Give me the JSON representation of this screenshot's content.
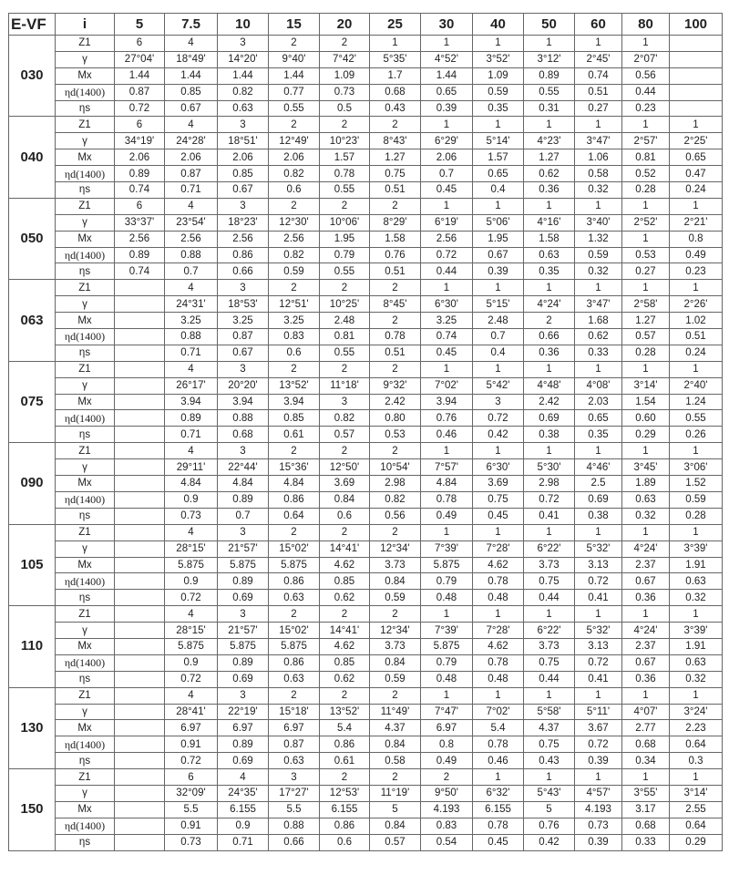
{
  "header": {
    "model": "E-VF",
    "ratio_label": "i",
    "ratios": [
      "5",
      "7.5",
      "10",
      "15",
      "20",
      "25",
      "30",
      "40",
      "50",
      "60",
      "80",
      "100"
    ]
  },
  "row_labels": [
    "Z1",
    "γ",
    "Mx",
    "ηd(1400)",
    "ηs"
  ],
  "groups": [
    {
      "size": "030",
      "rows": [
        [
          "6",
          "4",
          "3",
          "2",
          "2",
          "1",
          "1",
          "1",
          "1",
          "1",
          "1",
          ""
        ],
        [
          "27°04'",
          "18°49'",
          "14°20'",
          "9°40'",
          "7°42'",
          "5°35'",
          "4°52'",
          "3°52'",
          "3°12'",
          "2°45'",
          "2°07'",
          ""
        ],
        [
          "1.44",
          "1.44",
          "1.44",
          "1.44",
          "1.09",
          "1.7",
          "1.44",
          "1.09",
          "0.89",
          "0.74",
          "0.56",
          ""
        ],
        [
          "0.87",
          "0.85",
          "0.82",
          "0.77",
          "0.73",
          "0.68",
          "0.65",
          "0.59",
          "0.55",
          "0.51",
          "0.44",
          ""
        ],
        [
          "0.72",
          "0.67",
          "0.63",
          "0.55",
          "0.5",
          "0.43",
          "0.39",
          "0.35",
          "0.31",
          "0.27",
          "0.23",
          ""
        ]
      ]
    },
    {
      "size": "040",
      "rows": [
        [
          "6",
          "4",
          "3",
          "2",
          "2",
          "2",
          "1",
          "1",
          "1",
          "1",
          "1",
          "1"
        ],
        [
          "34°19'",
          "24°28'",
          "18°51'",
          "12°49'",
          "10°23'",
          "8°43'",
          "6°29'",
          "5°14'",
          "4°23'",
          "3°47'",
          "2°57'",
          "2°25'"
        ],
        [
          "2.06",
          "2.06",
          "2.06",
          "2.06",
          "1.57",
          "1.27",
          "2.06",
          "1.57",
          "1.27",
          "1.06",
          "0.81",
          "0.65"
        ],
        [
          "0.89",
          "0.87",
          "0.85",
          "0.82",
          "0.78",
          "0.75",
          "0.7",
          "0.65",
          "0.62",
          "0.58",
          "0.52",
          "0.47"
        ],
        [
          "0.74",
          "0.71",
          "0.67",
          "0.6",
          "0.55",
          "0.51",
          "0.45",
          "0.4",
          "0.36",
          "0.32",
          "0.28",
          "0.24"
        ]
      ]
    },
    {
      "size": "050",
      "rows": [
        [
          "6",
          "4",
          "3",
          "2",
          "2",
          "2",
          "1",
          "1",
          "1",
          "1",
          "1",
          "1"
        ],
        [
          "33°37'",
          "23°54'",
          "18°23'",
          "12°30'",
          "10°06'",
          "8°29'",
          "6°19'",
          "5°06'",
          "4°16'",
          "3°40'",
          "2°52'",
          "2°21'"
        ],
        [
          "2.56",
          "2.56",
          "2.56",
          "2.56",
          "1.95",
          "1.58",
          "2.56",
          "1.95",
          "1.58",
          "1.32",
          "1",
          "0.8"
        ],
        [
          "0.89",
          "0.88",
          "0.86",
          "0.82",
          "0.79",
          "0.76",
          "0.72",
          "0.67",
          "0.63",
          "0.59",
          "0.53",
          "0.49"
        ],
        [
          "0.74",
          "0.7",
          "0.66",
          "0.59",
          "0.55",
          "0.51",
          "0.44",
          "0.39",
          "0.35",
          "0.32",
          "0.27",
          "0.23"
        ]
      ]
    },
    {
      "size": "063",
      "rows": [
        [
          "",
          "4",
          "3",
          "2",
          "2",
          "2",
          "1",
          "1",
          "1",
          "1",
          "1",
          "1"
        ],
        [
          "",
          "24°31'",
          "18°53'",
          "12°51'",
          "10°25'",
          "8°45'",
          "6°30'",
          "5°15'",
          "4°24'",
          "3°47'",
          "2°58'",
          "2°26'"
        ],
        [
          "",
          "3.25",
          "3.25",
          "3.25",
          "2.48",
          "2",
          "3.25",
          "2.48",
          "2",
          "1.68",
          "1.27",
          "1.02"
        ],
        [
          "",
          "0.88",
          "0.87",
          "0.83",
          "0.81",
          "0.78",
          "0.74",
          "0.7",
          "0.66",
          "0.62",
          "0.57",
          "0.51"
        ],
        [
          "",
          "0.71",
          "0.67",
          "0.6",
          "0.55",
          "0.51",
          "0.45",
          "0.4",
          "0.36",
          "0.33",
          "0.28",
          "0.24"
        ]
      ]
    },
    {
      "size": "075",
      "rows": [
        [
          "",
          "4",
          "3",
          "2",
          "2",
          "2",
          "1",
          "1",
          "1",
          "1",
          "1",
          "1"
        ],
        [
          "",
          "26°17'",
          "20°20'",
          "13°52'",
          "11°18'",
          "9°32'",
          "7°02'",
          "5°42'",
          "4°48'",
          "4°08'",
          "3°14'",
          "2°40'"
        ],
        [
          "",
          "3.94",
          "3.94",
          "3.94",
          "3",
          "2.42",
          "3.94",
          "3",
          "2.42",
          "2.03",
          "1.54",
          "1.24"
        ],
        [
          "",
          "0.89",
          "0.88",
          "0.85",
          "0.82",
          "0.80",
          "0.76",
          "0.72",
          "0.69",
          "0.65",
          "0.60",
          "0.55"
        ],
        [
          "",
          "0.71",
          "0.68",
          "0.61",
          "0.57",
          "0.53",
          "0.46",
          "0.42",
          "0.38",
          "0.35",
          "0.29",
          "0.26"
        ]
      ]
    },
    {
      "size": "090",
      "rows": [
        [
          "",
          "4",
          "3",
          "2",
          "2",
          "2",
          "1",
          "1",
          "1",
          "1",
          "1",
          "1"
        ],
        [
          "",
          "29°11'",
          "22°44'",
          "15°36'",
          "12°50'",
          "10°54'",
          "7°57'",
          "6°30'",
          "5°30'",
          "4°46'",
          "3°45'",
          "3°06'"
        ],
        [
          "",
          "4.84",
          "4.84",
          "4.84",
          "3.69",
          "2.98",
          "4.84",
          "3.69",
          "2.98",
          "2.5",
          "1.89",
          "1.52"
        ],
        [
          "",
          "0.9",
          "0.89",
          "0.86",
          "0.84",
          "0.82",
          "0.78",
          "0.75",
          "0.72",
          "0.69",
          "0.63",
          "0.59"
        ],
        [
          "",
          "0.73",
          "0.7",
          "0.64",
          "0.6",
          "0.56",
          "0.49",
          "0.45",
          "0.41",
          "0.38",
          "0.32",
          "0.28"
        ]
      ]
    },
    {
      "size": "105",
      "rows": [
        [
          "",
          "4",
          "3",
          "2",
          "2",
          "2",
          "1",
          "1",
          "1",
          "1",
          "1",
          "1"
        ],
        [
          "",
          "28°15'",
          "21°57'",
          "15°02'",
          "14°41'",
          "12°34'",
          "7°39'",
          "7°28'",
          "6°22'",
          "5°32'",
          "4°24'",
          "3°39'"
        ],
        [
          "",
          "5.875",
          "5.875",
          "5.875",
          "4.62",
          "3.73",
          "5.875",
          "4.62",
          "3.73",
          "3.13",
          "2.37",
          "1.91"
        ],
        [
          "",
          "0.9",
          "0.89",
          "0.86",
          "0.85",
          "0.84",
          "0.79",
          "0.78",
          "0.75",
          "0.72",
          "0.67",
          "0.63"
        ],
        [
          "",
          "0.72",
          "0.69",
          "0.63",
          "0.62",
          "0.59",
          "0.48",
          "0.48",
          "0.44",
          "0.41",
          "0.36",
          "0.32"
        ]
      ]
    },
    {
      "size": "110",
      "rows": [
        [
          "",
          "4",
          "3",
          "2",
          "2",
          "2",
          "1",
          "1",
          "1",
          "1",
          "1",
          "1"
        ],
        [
          "",
          "28°15'",
          "21°57'",
          "15°02'",
          "14°41'",
          "12°34'",
          "7°39'",
          "7°28'",
          "6°22'",
          "5°32'",
          "4°24'",
          "3°39'"
        ],
        [
          "",
          "5.875",
          "5.875",
          "5.875",
          "4.62",
          "3.73",
          "5.875",
          "4.62",
          "3.73",
          "3.13",
          "2.37",
          "1.91"
        ],
        [
          "",
          "0.9",
          "0.89",
          "0.86",
          "0.85",
          "0.84",
          "0.79",
          "0.78",
          "0.75",
          "0.72",
          "0.67",
          "0.63"
        ],
        [
          "",
          "0.72",
          "0.69",
          "0.63",
          "0.62",
          "0.59",
          "0.48",
          "0.48",
          "0.44",
          "0.41",
          "0.36",
          "0.32"
        ]
      ]
    },
    {
      "size": "130",
      "rows": [
        [
          "",
          "4",
          "3",
          "2",
          "2",
          "2",
          "1",
          "1",
          "1",
          "1",
          "1",
          "1"
        ],
        [
          "",
          "28°41'",
          "22°19'",
          "15°18'",
          "13°52'",
          "11°49'",
          "7°47'",
          "7°02'",
          "5°58'",
          "5°11'",
          "4°07'",
          "3°24'"
        ],
        [
          "",
          "6.97",
          "6.97",
          "6.97",
          "5.4",
          "4.37",
          "6.97",
          "5.4",
          "4.37",
          "3.67",
          "2.77",
          "2.23"
        ],
        [
          "",
          "0.91",
          "0.89",
          "0.87",
          "0.86",
          "0.84",
          "0.8",
          "0.78",
          "0.75",
          "0.72",
          "0.68",
          "0.64"
        ],
        [
          "",
          "0.72",
          "0.69",
          "0.63",
          "0.61",
          "0.58",
          "0.49",
          "0.46",
          "0.43",
          "0.39",
          "0.34",
          "0.3"
        ]
      ]
    },
    {
      "size": "150",
      "rows": [
        [
          "",
          "6",
          "4",
          "3",
          "2",
          "2",
          "2",
          "1",
          "1",
          "1",
          "1",
          "1"
        ],
        [
          "",
          "32°09'",
          "24°35'",
          "17°27'",
          "12°53'",
          "11°19'",
          "9°50'",
          "6°32'",
          "5°43'",
          "4°57'",
          "3°55'",
          "3°14'"
        ],
        [
          "",
          "5.5",
          "6.155",
          "5.5",
          "6.155",
          "5",
          "4.193",
          "6.155",
          "5",
          "4.193",
          "3.17",
          "2.55"
        ],
        [
          "",
          "0.91",
          "0.9",
          "0.88",
          "0.86",
          "0.84",
          "0.83",
          "0.78",
          "0.76",
          "0.73",
          "0.68",
          "0.64"
        ],
        [
          "",
          "0.73",
          "0.71",
          "0.66",
          "0.6",
          "0.57",
          "0.54",
          "0.45",
          "0.42",
          "0.39",
          "0.33",
          "0.29"
        ]
      ]
    }
  ]
}
